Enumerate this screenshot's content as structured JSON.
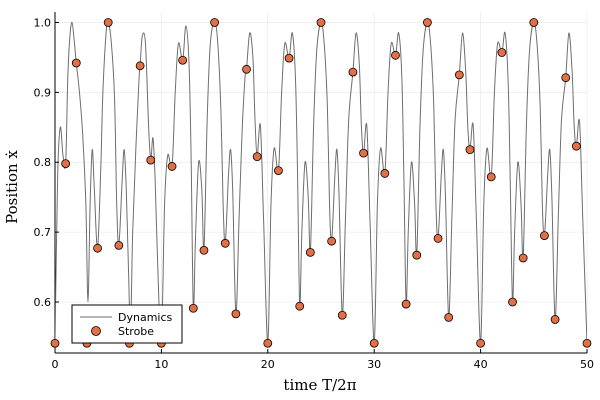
{
  "chart_data": {
    "type": "scatter",
    "xlabel": "time T/2π",
    "ylabel": "Position ẋ",
    "xlim": [
      0,
      50
    ],
    "ylim": [
      0.527,
      1.015
    ],
    "xticks": [
      0,
      10,
      20,
      30,
      40,
      50
    ],
    "yticks": [
      0.6,
      0.7,
      0.8,
      0.9,
      1.0
    ],
    "xtick_labels": [
      "0",
      "10",
      "20",
      "30",
      "40",
      "50"
    ],
    "ytick_labels": [
      "0.6",
      "0.7",
      "0.8",
      "0.9",
      "1.0"
    ],
    "grid": true,
    "legend_position": "bottom-left",
    "series": [
      {
        "name": "Dynamics",
        "kind": "line",
        "color": "#6e6e6e",
        "points": [
          [
            0.0,
            0.541
          ],
          [
            0.25,
            0.78
          ],
          [
            0.5,
            0.85
          ],
          [
            0.75,
            0.81
          ],
          [
            1.0,
            0.798
          ],
          [
            1.2,
            0.92
          ],
          [
            1.4,
            0.98
          ],
          [
            1.6,
            1.0
          ],
          [
            1.8,
            0.975
          ],
          [
            2.0,
            0.942
          ],
          [
            2.3,
            0.9
          ],
          [
            2.6,
            0.84
          ],
          [
            2.9,
            0.74
          ],
          [
            3.1,
            0.6
          ],
          [
            3.3,
            0.74
          ],
          [
            3.5,
            0.818
          ],
          [
            3.7,
            0.76
          ],
          [
            4.0,
            0.677
          ],
          [
            4.3,
            0.79
          ],
          [
            4.5,
            0.9
          ],
          [
            4.8,
            0.985
          ],
          [
            5.0,
            1.0
          ],
          [
            5.3,
            0.97
          ],
          [
            5.6,
            0.89
          ],
          [
            5.8,
            0.74
          ],
          [
            6.0,
            0.681
          ],
          [
            6.3,
            0.77
          ],
          [
            6.5,
            0.818
          ],
          [
            6.7,
            0.76
          ],
          [
            6.9,
            0.65
          ],
          [
            7.1,
            0.56
          ],
          [
            7.3,
            0.7
          ],
          [
            7.6,
            0.82
          ],
          [
            7.9,
            0.92
          ],
          [
            8.0,
            0.938
          ],
          [
            8.2,
            0.98
          ],
          [
            8.5,
            0.97
          ],
          [
            8.8,
            0.85
          ],
          [
            9.0,
            0.803
          ],
          [
            9.2,
            0.835
          ],
          [
            9.4,
            0.78
          ],
          [
            9.7,
            0.63
          ],
          [
            10.0,
            0.541
          ],
          [
            10.3,
            0.74
          ],
          [
            10.6,
            0.81
          ],
          [
            11.0,
            0.794
          ],
          [
            11.3,
            0.9
          ],
          [
            11.6,
            0.97
          ],
          [
            12.0,
            0.946
          ],
          [
            12.3,
            0.995
          ],
          [
            12.6,
            0.94
          ],
          [
            12.8,
            0.8
          ],
          [
            13.0,
            0.591
          ],
          [
            13.2,
            0.69
          ],
          [
            13.5,
            0.8
          ],
          [
            13.8,
            0.76
          ],
          [
            14.0,
            0.674
          ],
          [
            14.3,
            0.86
          ],
          [
            14.6,
            0.97
          ],
          [
            15.0,
            1.0
          ],
          [
            15.3,
            0.97
          ],
          [
            15.6,
            0.87
          ],
          [
            15.8,
            0.74
          ],
          [
            16.0,
            0.684
          ],
          [
            16.3,
            0.78
          ],
          [
            16.5,
            0.818
          ],
          [
            16.7,
            0.76
          ],
          [
            17.0,
            0.583
          ],
          [
            17.3,
            0.72
          ],
          [
            17.6,
            0.85
          ],
          [
            17.9,
            0.93
          ],
          [
            18.0,
            0.933
          ],
          [
            18.3,
            0.985
          ],
          [
            18.6,
            0.95
          ],
          [
            18.8,
            0.86
          ],
          [
            19.0,
            0.808
          ],
          [
            19.3,
            0.853
          ],
          [
            19.6,
            0.72
          ],
          [
            20.0,
            0.541
          ],
          [
            20.3,
            0.74
          ],
          [
            20.6,
            0.82
          ],
          [
            21.0,
            0.788
          ],
          [
            21.3,
            0.9
          ],
          [
            21.6,
            0.97
          ],
          [
            22.0,
            0.949
          ],
          [
            22.3,
            0.985
          ],
          [
            22.6,
            0.92
          ],
          [
            22.8,
            0.78
          ],
          [
            23.0,
            0.594
          ],
          [
            23.2,
            0.7
          ],
          [
            23.5,
            0.8
          ],
          [
            23.8,
            0.75
          ],
          [
            24.0,
            0.671
          ],
          [
            24.3,
            0.85
          ],
          [
            24.6,
            0.96
          ],
          [
            25.0,
            1.0
          ],
          [
            25.3,
            0.97
          ],
          [
            25.6,
            0.88
          ],
          [
            25.8,
            0.74
          ],
          [
            26.0,
            0.687
          ],
          [
            26.3,
            0.78
          ],
          [
            26.5,
            0.818
          ],
          [
            26.7,
            0.75
          ],
          [
            27.0,
            0.581
          ],
          [
            27.3,
            0.72
          ],
          [
            27.6,
            0.86
          ],
          [
            28.0,
            0.929
          ],
          [
            28.3,
            0.985
          ],
          [
            28.6,
            0.94
          ],
          [
            28.8,
            0.85
          ],
          [
            29.0,
            0.813
          ],
          [
            29.3,
            0.853
          ],
          [
            29.6,
            0.72
          ],
          [
            30.0,
            0.541
          ],
          [
            30.3,
            0.74
          ],
          [
            30.6,
            0.82
          ],
          [
            31.0,
            0.784
          ],
          [
            31.3,
            0.9
          ],
          [
            31.6,
            0.97
          ],
          [
            32.0,
            0.953
          ],
          [
            32.3,
            0.985
          ],
          [
            32.6,
            0.92
          ],
          [
            32.8,
            0.77
          ],
          [
            33.0,
            0.597
          ],
          [
            33.2,
            0.7
          ],
          [
            33.5,
            0.8
          ],
          [
            33.8,
            0.74
          ],
          [
            34.0,
            0.667
          ],
          [
            34.3,
            0.85
          ],
          [
            34.6,
            0.96
          ],
          [
            35.0,
            1.0
          ],
          [
            35.3,
            0.97
          ],
          [
            35.6,
            0.88
          ],
          [
            35.8,
            0.74
          ],
          [
            36.0,
            0.691
          ],
          [
            36.3,
            0.78
          ],
          [
            36.5,
            0.818
          ],
          [
            36.7,
            0.75
          ],
          [
            37.0,
            0.578
          ],
          [
            37.3,
            0.72
          ],
          [
            37.6,
            0.86
          ],
          [
            38.0,
            0.925
          ],
          [
            38.3,
            0.985
          ],
          [
            38.6,
            0.93
          ],
          [
            38.8,
            0.85
          ],
          [
            39.0,
            0.818
          ],
          [
            39.3,
            0.853
          ],
          [
            39.6,
            0.72
          ],
          [
            40.0,
            0.541
          ],
          [
            40.3,
            0.74
          ],
          [
            40.6,
            0.82
          ],
          [
            41.0,
            0.779
          ],
          [
            41.3,
            0.9
          ],
          [
            41.6,
            0.97
          ],
          [
            42.0,
            0.957
          ],
          [
            42.3,
            0.985
          ],
          [
            42.6,
            0.91
          ],
          [
            42.8,
            0.76
          ],
          [
            43.0,
            0.6
          ],
          [
            43.2,
            0.7
          ],
          [
            43.5,
            0.8
          ],
          [
            43.8,
            0.74
          ],
          [
            44.0,
            0.663
          ],
          [
            44.3,
            0.85
          ],
          [
            44.6,
            0.96
          ],
          [
            45.0,
            1.0
          ],
          [
            45.3,
            0.97
          ],
          [
            45.6,
            0.88
          ],
          [
            45.8,
            0.74
          ],
          [
            46.0,
            0.695
          ],
          [
            46.3,
            0.78
          ],
          [
            46.5,
            0.818
          ],
          [
            46.7,
            0.75
          ],
          [
            47.0,
            0.575
          ],
          [
            47.3,
            0.72
          ],
          [
            47.6,
            0.86
          ],
          [
            48.0,
            0.921
          ],
          [
            48.3,
            0.985
          ],
          [
            48.6,
            0.93
          ],
          [
            48.8,
            0.85
          ],
          [
            49.0,
            0.823
          ],
          [
            49.3,
            0.858
          ],
          [
            49.6,
            0.72
          ],
          [
            50.0,
            0.541
          ]
        ]
      },
      {
        "name": "Strobe",
        "kind": "scatter",
        "color": "#e26f46",
        "x": [
          0,
          1,
          2,
          3,
          4,
          5,
          6,
          7,
          8,
          9,
          10,
          11,
          12,
          13,
          14,
          15,
          16,
          17,
          18,
          19,
          20,
          21,
          22,
          23,
          24,
          25,
          26,
          27,
          28,
          29,
          30,
          31,
          32,
          33,
          34,
          35,
          36,
          37,
          38,
          39,
          40,
          41,
          42,
          43,
          44,
          45,
          46,
          47,
          48,
          49,
          50
        ],
        "y": [
          0.541,
          0.798,
          0.942,
          0.541,
          0.677,
          1.0,
          0.681,
          0.541,
          0.938,
          0.803,
          0.541,
          0.794,
          0.946,
          0.591,
          0.674,
          1.0,
          0.684,
          0.583,
          0.933,
          0.808,
          0.541,
          0.788,
          0.949,
          0.594,
          0.671,
          1.0,
          0.687,
          0.581,
          0.929,
          0.813,
          0.541,
          0.784,
          0.953,
          0.597,
          0.667,
          1.0,
          0.691,
          0.578,
          0.925,
          0.818,
          0.541,
          0.779,
          0.957,
          0.6,
          0.663,
          1.0,
          0.695,
          0.575,
          0.921,
          0.823,
          0.541
        ]
      }
    ]
  }
}
